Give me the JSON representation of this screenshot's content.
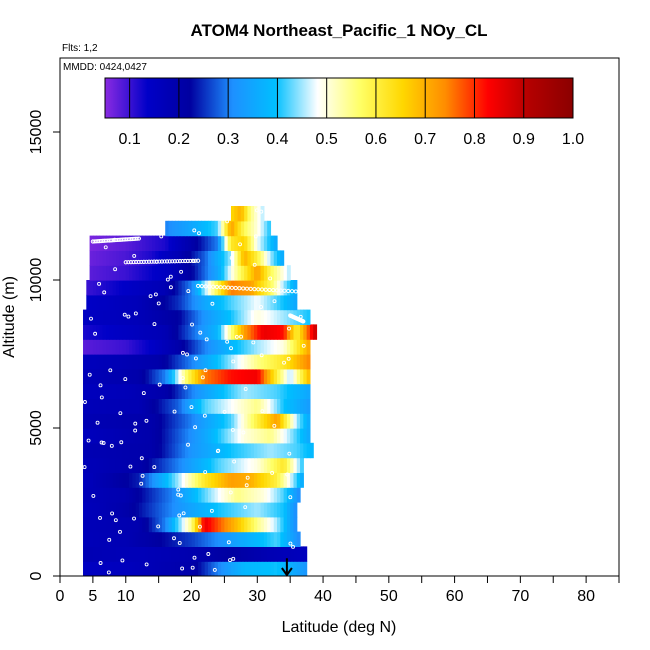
{
  "chart_data": {
    "type": "heatmap",
    "title": "ATOM4 Northeast_Pacific_1 NOy_CL",
    "flights_label": "Flts: 1,2",
    "dates_label": "MMDD: 0424,0427",
    "xlabel": "Latitude (deg N)",
    "ylabel": "Altitude (m)",
    "xlim": [
      0,
      85
    ],
    "ylim": [
      0,
      17500
    ],
    "x_tick_values": [
      0,
      5,
      10,
      20,
      30,
      40,
      50,
      60,
      70,
      80
    ],
    "x_tick_labels": [
      "0",
      "5",
      "10",
      "20",
      "30",
      "40",
      "50",
      "60",
      "70",
      "80"
    ],
    "x_minor_ticks": [
      15,
      25,
      35,
      45,
      55,
      65,
      75,
      85
    ],
    "y_tick_values": [
      0,
      5000,
      10000,
      15000
    ],
    "y_tick_labels": [
      "0",
      "5000",
      "10000",
      "15000"
    ],
    "colorbar": {
      "range": [
        0.05,
        1.0
      ],
      "tick_values": [
        0.1,
        0.2,
        0.3,
        0.4,
        0.5,
        0.6,
        0.7,
        0.8,
        0.9,
        1.0
      ],
      "tick_labels": [
        "0.1",
        "0.2",
        "0.3",
        "0.4",
        "0.5",
        "0.6",
        "0.7",
        "0.8",
        "0.9",
        "1.0"
      ],
      "colors": [
        "#8a2be2",
        "#0000c8",
        "#0000a0",
        "#1e90ff",
        "#00bfff",
        "#ffffff",
        "#ffff66",
        "#ffd700",
        "#ff8c00",
        "#ff0000",
        "#b20000",
        "#8b0000"
      ]
    },
    "bands": [
      {
        "z0": 0,
        "z1": 500,
        "lat_min": 3.5,
        "lat_max": 37.5,
        "v": [
          [
            3.5,
            0.15
          ],
          [
            10,
            0.16
          ],
          [
            20,
            0.2
          ],
          [
            24,
            0.3
          ],
          [
            28,
            0.38
          ],
          [
            33,
            0.4
          ],
          [
            37.5,
            0.32
          ]
        ]
      },
      {
        "z0": 500,
        "z1": 1000,
        "lat_min": 3.5,
        "lat_max": 37.5,
        "v": [
          [
            3.5,
            0.18
          ],
          [
            12,
            0.17
          ],
          [
            20,
            0.19
          ],
          [
            26,
            0.22
          ],
          [
            32,
            0.18
          ],
          [
            37.5,
            0.16
          ]
        ]
      },
      {
        "z0": 1000,
        "z1": 1500,
        "lat_min": 3.5,
        "lat_max": 36.5,
        "v": [
          [
            3.5,
            0.17
          ],
          [
            10,
            0.18
          ],
          [
            20,
            0.26
          ],
          [
            28,
            0.36
          ],
          [
            33,
            0.42
          ],
          [
            36.5,
            0.3
          ]
        ]
      },
      {
        "z0": 1500,
        "z1": 2000,
        "lat_min": 3.5,
        "lat_max": 36,
        "v": [
          [
            3.5,
            0.17
          ],
          [
            12,
            0.19
          ],
          [
            16,
            0.3
          ],
          [
            20,
            0.55
          ],
          [
            22,
            0.85
          ],
          [
            24,
            0.78
          ],
          [
            27,
            0.68
          ],
          [
            30,
            0.55
          ],
          [
            33,
            0.45
          ],
          [
            36,
            0.3
          ]
        ]
      },
      {
        "z0": 2000,
        "z1": 2500,
        "lat_min": 3.5,
        "lat_max": 36,
        "v": [
          [
            3.5,
            0.16
          ],
          [
            10,
            0.2
          ],
          [
            18,
            0.32
          ],
          [
            24,
            0.4
          ],
          [
            30,
            0.45
          ],
          [
            34,
            0.4
          ],
          [
            36,
            0.3
          ]
        ]
      },
      {
        "z0": 2500,
        "z1": 3000,
        "lat_min": 3.5,
        "lat_max": 36.5,
        "v": [
          [
            3.5,
            0.17
          ],
          [
            10,
            0.19
          ],
          [
            17,
            0.3
          ],
          [
            23,
            0.45
          ],
          [
            27,
            0.55
          ],
          [
            31,
            0.5
          ],
          [
            34,
            0.42
          ],
          [
            36.5,
            0.3
          ]
        ]
      },
      {
        "z0": 3000,
        "z1": 3500,
        "lat_min": 3.5,
        "lat_max": 37,
        "v": [
          [
            3.5,
            0.16
          ],
          [
            12,
            0.24
          ],
          [
            18,
            0.45
          ],
          [
            22,
            0.62
          ],
          [
            26,
            0.72
          ],
          [
            29,
            0.7
          ],
          [
            33,
            0.6
          ],
          [
            37,
            0.35
          ]
        ]
      },
      {
        "z0": 3500,
        "z1": 4000,
        "lat_min": 3.5,
        "lat_max": 37,
        "v": [
          [
            3.5,
            0.17
          ],
          [
            12,
            0.2
          ],
          [
            18,
            0.3
          ],
          [
            24,
            0.42
          ],
          [
            30,
            0.5
          ],
          [
            34,
            0.62
          ],
          [
            37,
            0.4
          ]
        ]
      },
      {
        "z0": 4000,
        "z1": 4500,
        "lat_min": 3.5,
        "lat_max": 38.5,
        "v": [
          [
            3.5,
            0.18
          ],
          [
            14,
            0.2
          ],
          [
            20,
            0.32
          ],
          [
            26,
            0.4
          ],
          [
            32,
            0.45
          ],
          [
            36,
            0.42
          ],
          [
            38.5,
            0.38
          ]
        ]
      },
      {
        "z0": 4500,
        "z1": 5000,
        "lat_min": 3.5,
        "lat_max": 38,
        "v": [
          [
            3.5,
            0.16
          ],
          [
            14,
            0.2
          ],
          [
            22,
            0.35
          ],
          [
            28,
            0.5
          ],
          [
            32,
            0.55
          ],
          [
            35,
            0.45
          ],
          [
            38,
            0.35
          ]
        ]
      },
      {
        "z0": 5000,
        "z1": 5500,
        "lat_min": 3.5,
        "lat_max": 38,
        "v": [
          [
            3.5,
            0.18
          ],
          [
            14,
            0.2
          ],
          [
            20,
            0.3
          ],
          [
            26,
            0.42
          ],
          [
            30,
            0.6
          ],
          [
            33,
            0.72
          ],
          [
            36,
            0.45
          ],
          [
            38,
            0.35
          ]
        ]
      },
      {
        "z0": 5500,
        "z1": 6000,
        "lat_min": 3.5,
        "lat_max": 38,
        "v": [
          [
            3.5,
            0.17
          ],
          [
            12,
            0.18
          ],
          [
            18,
            0.28
          ],
          [
            22,
            0.42
          ],
          [
            26,
            0.48
          ],
          [
            30,
            0.55
          ],
          [
            34,
            0.4
          ],
          [
            38,
            0.33
          ]
        ]
      },
      {
        "z0": 6000,
        "z1": 6500,
        "lat_min": 3.5,
        "lat_max": 38,
        "v": [
          [
            3.5,
            0.16
          ],
          [
            10,
            0.17
          ],
          [
            16,
            0.2
          ],
          [
            20,
            0.3
          ],
          [
            24,
            0.38
          ],
          [
            28,
            0.45
          ],
          [
            33,
            0.42
          ],
          [
            38,
            0.35
          ]
        ]
      },
      {
        "z0": 6500,
        "z1": 7000,
        "lat_min": 3.5,
        "lat_max": 38,
        "v": [
          [
            3.5,
            0.17
          ],
          [
            12,
            0.2
          ],
          [
            16,
            0.3
          ],
          [
            19,
            0.55
          ],
          [
            22,
            0.75
          ],
          [
            26,
            0.82
          ],
          [
            30,
            0.84
          ],
          [
            33,
            0.6
          ],
          [
            35,
            0.45
          ],
          [
            38,
            0.7
          ]
        ]
      },
      {
        "z0": 7000,
        "z1": 7500,
        "lat_min": 3.5,
        "lat_max": 38,
        "v": [
          [
            3.5,
            0.16
          ],
          [
            10,
            0.18
          ],
          [
            15,
            0.2
          ],
          [
            20,
            0.3
          ],
          [
            25,
            0.42
          ],
          [
            30,
            0.55
          ],
          [
            34,
            0.62
          ],
          [
            38,
            0.75
          ]
        ]
      },
      {
        "z0": 7500,
        "z1": 8000,
        "lat_min": 3.5,
        "lat_max": 38,
        "v": [
          [
            3.5,
            0.08
          ],
          [
            10,
            0.1
          ],
          [
            14,
            0.14
          ],
          [
            18,
            0.2
          ],
          [
            22,
            0.3
          ],
          [
            26,
            0.38
          ],
          [
            30,
            0.45
          ],
          [
            34,
            0.5
          ],
          [
            38,
            0.72
          ]
        ]
      },
      {
        "z0": 8000,
        "z1": 8500,
        "lat_min": 3.5,
        "lat_max": 39,
        "v": [
          [
            3.5,
            0.12
          ],
          [
            10,
            0.15
          ],
          [
            16,
            0.18
          ],
          [
            20,
            0.28
          ],
          [
            24,
            0.38
          ],
          [
            28,
            0.72
          ],
          [
            31,
            0.85
          ],
          [
            34,
            0.82
          ],
          [
            36,
            0.6
          ],
          [
            39,
            0.9
          ]
        ]
      },
      {
        "z0": 8500,
        "z1": 9000,
        "lat_min": 3.5,
        "lat_max": 38,
        "v": [
          [
            3.5,
            0.15
          ],
          [
            12,
            0.17
          ],
          [
            18,
            0.22
          ],
          [
            22,
            0.32
          ],
          [
            26,
            0.4
          ],
          [
            30,
            0.5
          ],
          [
            34,
            0.45
          ],
          [
            38,
            0.4
          ]
        ]
      },
      {
        "z0": 9000,
        "z1": 9500,
        "lat_min": 4,
        "lat_max": 36,
        "v": [
          [
            4,
            0.14
          ],
          [
            12,
            0.17
          ],
          [
            18,
            0.25
          ],
          [
            22,
            0.35
          ],
          [
            26,
            0.42
          ],
          [
            30,
            0.48
          ],
          [
            33,
            0.42
          ],
          [
            36,
            0.35
          ]
        ]
      },
      {
        "z0": 9500,
        "z1": 10000,
        "lat_min": 4,
        "lat_max": 36,
        "v": [
          [
            4,
            0.1
          ],
          [
            10,
            0.14
          ],
          [
            16,
            0.18
          ],
          [
            20,
            0.3
          ],
          [
            23,
            0.52
          ],
          [
            26,
            0.75
          ],
          [
            29,
            0.72
          ],
          [
            32,
            0.58
          ],
          [
            34,
            0.45
          ],
          [
            36,
            0.35
          ]
        ]
      },
      {
        "z0": 10000,
        "z1": 10500,
        "lat_min": 4.5,
        "lat_max": 35,
        "v": [
          [
            4.5,
            0.08
          ],
          [
            10,
            0.1
          ],
          [
            16,
            0.15
          ],
          [
            20,
            0.22
          ],
          [
            24,
            0.35
          ],
          [
            27,
            0.55
          ],
          [
            30,
            0.72
          ],
          [
            32,
            0.58
          ],
          [
            35,
            0.45
          ]
        ]
      },
      {
        "z0": 10500,
        "z1": 11000,
        "lat_min": 4.5,
        "lat_max": 34,
        "v": [
          [
            4.5,
            0.07
          ],
          [
            10,
            0.09
          ],
          [
            14,
            0.12
          ],
          [
            18,
            0.18
          ],
          [
            22,
            0.28
          ],
          [
            26,
            0.45
          ],
          [
            28,
            0.7
          ],
          [
            30,
            0.6
          ],
          [
            32,
            0.45
          ],
          [
            34,
            0.35
          ]
        ]
      },
      {
        "z0": 11000,
        "z1": 11500,
        "lat_min": 4.5,
        "lat_max": 33,
        "v": [
          [
            4.5,
            0.06
          ],
          [
            10,
            0.08
          ],
          [
            16,
            0.12
          ],
          [
            20,
            0.2
          ],
          [
            24,
            0.3
          ],
          [
            26,
            0.62
          ],
          [
            28,
            0.66
          ],
          [
            30,
            0.48
          ],
          [
            33,
            0.35
          ]
        ]
      },
      {
        "z0": 11500,
        "z1": 12000,
        "lat_min": 16,
        "lat_max": 32,
        "v": [
          [
            16,
            0.3
          ],
          [
            20,
            0.35
          ],
          [
            24,
            0.42
          ],
          [
            26,
            0.72
          ],
          [
            28,
            0.58
          ],
          [
            30,
            0.5
          ],
          [
            32,
            0.4
          ]
        ]
      },
      {
        "z0": 12000,
        "z1": 12500,
        "lat_min": 26,
        "lat_max": 31,
        "v": [
          [
            26,
            0.65
          ],
          [
            27.5,
            0.7
          ],
          [
            29,
            0.55
          ],
          [
            31,
            0.45
          ]
        ]
      }
    ],
    "flight_tracks": [
      {
        "alt_range": [
          11300,
          11400
        ],
        "lat_range": [
          5,
          12
        ]
      },
      {
        "alt_range": [
          10600,
          10650
        ],
        "lat_range": [
          10,
          21
        ]
      },
      {
        "alt_range": [
          9800,
          9600
        ],
        "lat_range": [
          21,
          37
        ]
      },
      {
        "alt_range": [
          8800,
          8600
        ],
        "lat_range": [
          35,
          37
        ]
      }
    ],
    "annotation": {
      "type": "arrow",
      "lat": 34.5,
      "alt_from": 600,
      "alt_to": 0
    }
  }
}
